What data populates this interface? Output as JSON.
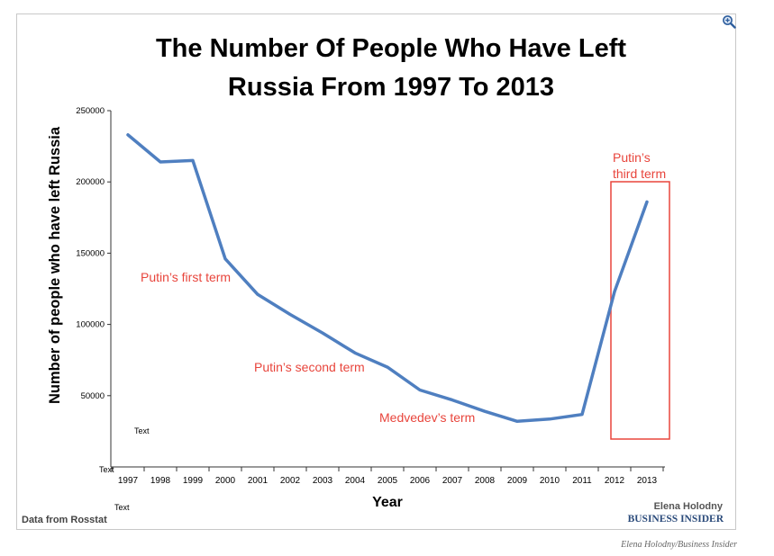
{
  "chart_data": {
    "type": "line",
    "title_lines": [
      "The Number Of People Who Have Left",
      "Russia From 1997 To 2013"
    ],
    "xlabel": "Year",
    "ylabel": "Number of people who have left Russia",
    "x": [
      "1997",
      "1998",
      "1999",
      "2000",
      "2001",
      "2002",
      "2003",
      "2004",
      "2005",
      "2006",
      "2007",
      "2008",
      "2009",
      "2010",
      "2011",
      "2012",
      "2013"
    ],
    "values": [
      233000,
      214000,
      215000,
      146000,
      121000,
      107000,
      94000,
      80000,
      70000,
      54000,
      47000,
      39000,
      32000,
      33600,
      36800,
      123000,
      186000
    ],
    "ylim": [
      0,
      250000
    ],
    "yticks": [
      "50000",
      "100000",
      "150000",
      "200000",
      "250000"
    ],
    "series_color": "#4f7fc0",
    "annotation_color": "#e8453c",
    "annotations": [
      {
        "text": "Putin’s first term"
      },
      {
        "text": "Putin’s second term"
      },
      {
        "text": "Medvedev’s term"
      },
      {
        "lines": [
          "Putin’s",
          "third term"
        ]
      }
    ],
    "placeholders": [
      "Text",
      "Text",
      "Text"
    ],
    "source": "Data from Rosstat",
    "brand": {
      "author": "Elena Holodny",
      "publisher": "BUSINESS INSIDER"
    },
    "grid": false,
    "legend": "none"
  },
  "credit": "Elena Holodny/Business Insider",
  "icons": {
    "zoom": "zoom-in-icon"
  }
}
